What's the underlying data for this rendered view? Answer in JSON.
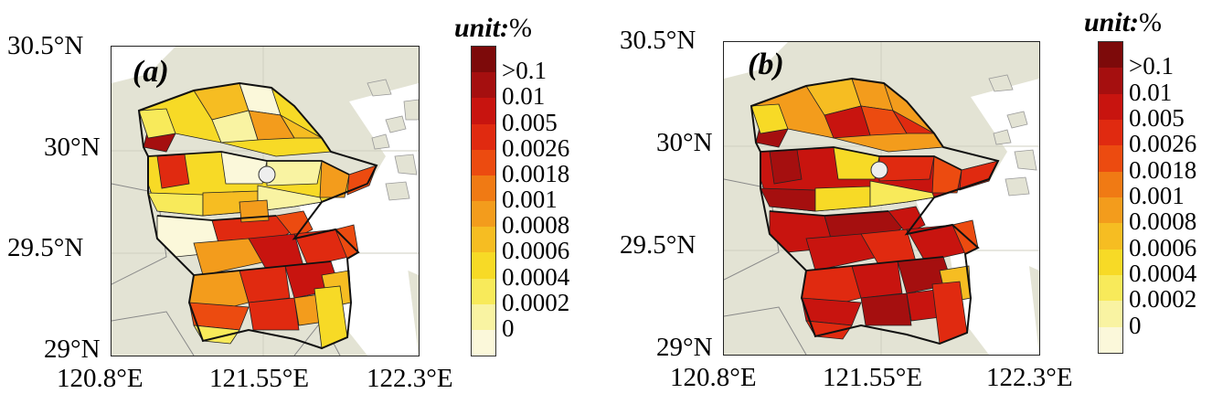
{
  "panels": [
    {
      "label": "(a)",
      "lat_ticks": [
        "30.5°N",
        "30°N",
        "29.5°N",
        "29°N"
      ],
      "lon_ticks": [
        "120.8°E",
        "121.55°E",
        "122.3°E"
      ]
    },
    {
      "label": "(b)",
      "lat_ticks": [
        "30.5°N",
        "30°N",
        "29.5°N",
        "29°N"
      ],
      "lon_ticks": [
        "120.8°E",
        "121.55°E",
        "122.3°E"
      ]
    }
  ],
  "colorbar": {
    "unit_word": "unit:",
    "unit_symbol": "%",
    "ticks": [
      ">0.1",
      "0.01",
      "0.005",
      "0.0026",
      "0.0018",
      "0.001",
      "0.0008",
      "0.0006",
      "0.0004",
      "0.0002",
      "0"
    ],
    "colors": [
      "#7d0a0a",
      "#a50f0f",
      "#c8140f",
      "#e02a10",
      "#ec4b10",
      "#f07a14",
      "#f39c1c",
      "#f6bd22",
      "#f7da26",
      "#f8ea5a",
      "#f9f3a2",
      "#fbf8da"
    ]
  },
  "colors": {
    "land": "#e3e3d4",
    "sea": "#ffffff",
    "border": "#111111"
  }
}
